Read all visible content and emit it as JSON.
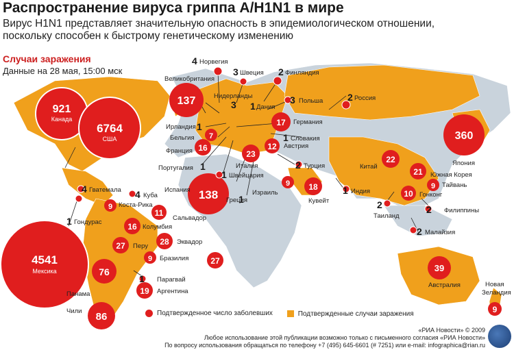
{
  "header": {
    "title": "Распространение вируса гриппа A/H1N1 в мире",
    "subtitle_line1": "Вирус H1N1 представляет значительную опасность в эпидемиологическом отношении,",
    "subtitle_line2": "поскольку способен к быстрому генетическому изменению"
  },
  "cases": {
    "title": "Случаи заражения",
    "date": "Данные на 28 мая, 15:00 мск"
  },
  "colors": {
    "confirmed_deaths": "#e01e1e",
    "confirmed_cases": "#f0a01c",
    "land": "#c9d3dc",
    "ocean": "#ffffff"
  },
  "bubbles": [
    {
      "id": "canada",
      "value": "921",
      "sub": "Канада"
    },
    {
      "id": "usa",
      "value": "6764",
      "sub": "США"
    },
    {
      "id": "mexico",
      "value": "4541",
      "sub": "Мексика"
    },
    {
      "id": "uk",
      "value": "137"
    },
    {
      "id": "spain",
      "value": "138"
    },
    {
      "id": "japan",
      "value": "360"
    },
    {
      "id": "germany",
      "value": "17"
    },
    {
      "id": "france",
      "value": "16"
    },
    {
      "id": "belgium",
      "value": "7"
    },
    {
      "id": "italy",
      "value": "23"
    },
    {
      "id": "austria",
      "value": "12"
    },
    {
      "id": "israel",
      "value": "9"
    },
    {
      "id": "kuwait",
      "value": "18"
    },
    {
      "id": "china",
      "value": "22"
    },
    {
      "id": "korea",
      "value": "21"
    },
    {
      "id": "taiwan",
      "value": "9"
    },
    {
      "id": "hongkong",
      "value": "10"
    },
    {
      "id": "australia",
      "value": "39"
    },
    {
      "id": "nz",
      "value": "9"
    },
    {
      "id": "costarica",
      "value": "9"
    },
    {
      "id": "salvador",
      "value": "11"
    },
    {
      "id": "colombia",
      "value": "16"
    },
    {
      "id": "peru",
      "value": "27"
    },
    {
      "id": "ecuador",
      "value": "28"
    },
    {
      "id": "brazil",
      "value": "9"
    },
    {
      "id": "atlantic",
      "value": "27"
    },
    {
      "id": "panama",
      "value": "76"
    },
    {
      "id": "argentina",
      "value": "19"
    },
    {
      "id": "chile",
      "value": "86"
    }
  ],
  "labels": {
    "norway": "Норвегия",
    "sweden": "Швеция",
    "finland": "Финляндия",
    "uk": "Великобритания",
    "netherlands": "Нидерланды",
    "denmark": "Дания",
    "poland": "Польша",
    "russia": "Россия",
    "germany": "Германия",
    "ireland": "Ирландия",
    "belgium": "Бельгия",
    "slovakia": "Словакия",
    "france": "Франция",
    "austria": "Австрия",
    "portugal": "Португалия",
    "turkey": "Турция",
    "italy": "Италия",
    "switzerland": "Швейцария",
    "china": "Китай",
    "japan": "Япония",
    "guatemala": "Гватемала",
    "cuba": "Куба",
    "spain": "Испания",
    "south_korea": "Южная Корея",
    "costarica": "Коста-Рика",
    "taiwan": "Тайвань",
    "greece": "Греция",
    "israel": "Израиль",
    "kuwait": "Кувейт",
    "india": "Индия",
    "hongkong": "Гонконг",
    "honduras": "Гондурас",
    "salvador": "Сальвадор",
    "thailand": "Таиланд",
    "philippines": "Филиппины",
    "colombia": "Колумбия",
    "malaysia": "Малайзия",
    "peru": "Перу",
    "ecuador": "Эквадор",
    "brazil": "Бразилия",
    "paraguay": "Парагвай",
    "panama": "Панама",
    "argentina": "Аргентина",
    "chile": "Чили",
    "australia": "Австралия",
    "nz_line1": "Новая",
    "nz_line2": "Зеландия"
  },
  "counts": {
    "norway": "4",
    "sweden": "3",
    "finland": "2",
    "netherlands": "3",
    "denmark": "1",
    "poland": "3",
    "russia": "2",
    "ireland": "1",
    "slovakia": "1",
    "portugal": "1",
    "turkey": "2",
    "switzerland": "1",
    "guatemala": "4",
    "cuba": "4",
    "greece": "1",
    "india": "1",
    "thailand": "2",
    "philippines": "2",
    "honduras": "1",
    "malaysia": "2",
    "paraguay": "1"
  },
  "legend": {
    "deaths": "Подтвержденное число заболевших",
    "cases": "Подтвержденные случаи заражения"
  },
  "footer": {
    "line1": "«РИА Новости» © 2009",
    "line2": "Любое использование этой публикации возможно только с письменного согласия «РИА Новости»",
    "line3": "По вопросу использования обращаться по телефону +7 (495) 645-6601 (# 7251) или e-mail: infographica@rian.ru"
  }
}
